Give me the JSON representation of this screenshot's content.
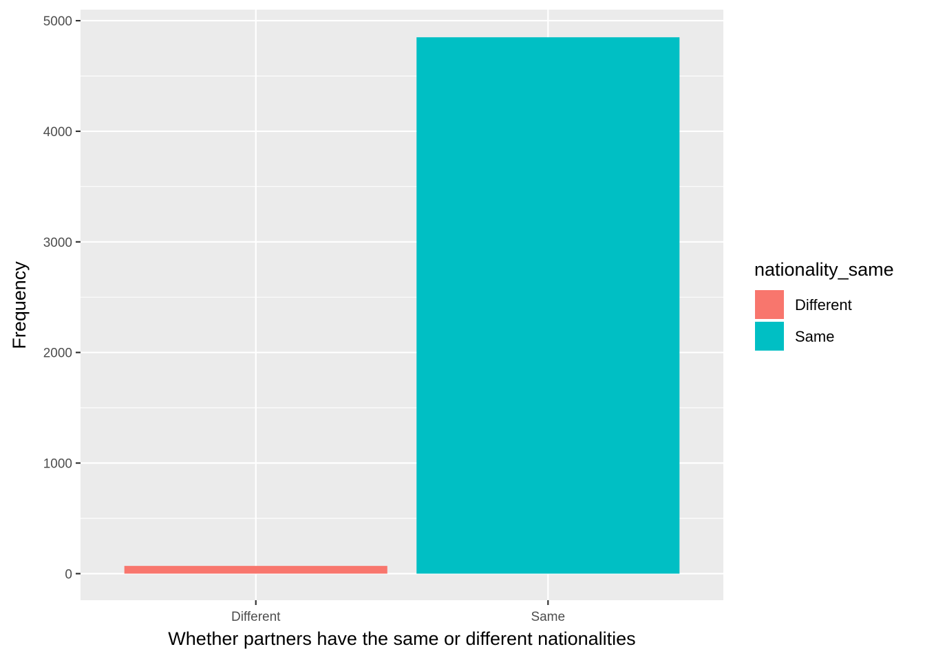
{
  "chart_data": {
    "type": "bar",
    "categories": [
      "Different",
      "Same"
    ],
    "values": [
      70,
      4850
    ],
    "colors": [
      "#f8766d",
      "#00bfc4"
    ],
    "xlabel": "Whether partners have the same or different nationalities",
    "ylabel": "Frequency",
    "ylim": [
      -240,
      5100
    ],
    "yticks": [
      0,
      1000,
      2000,
      3000,
      4000,
      5000
    ],
    "ytick_labels": [
      "0",
      "1000",
      "2000",
      "3000",
      "4000",
      "5000"
    ],
    "grid": true,
    "legend": {
      "title": "nationality_same",
      "placement": "right",
      "entries": [
        "Different",
        "Same"
      ]
    },
    "panel_background": "#ebebeb",
    "grid_color": "#ffffff"
  }
}
